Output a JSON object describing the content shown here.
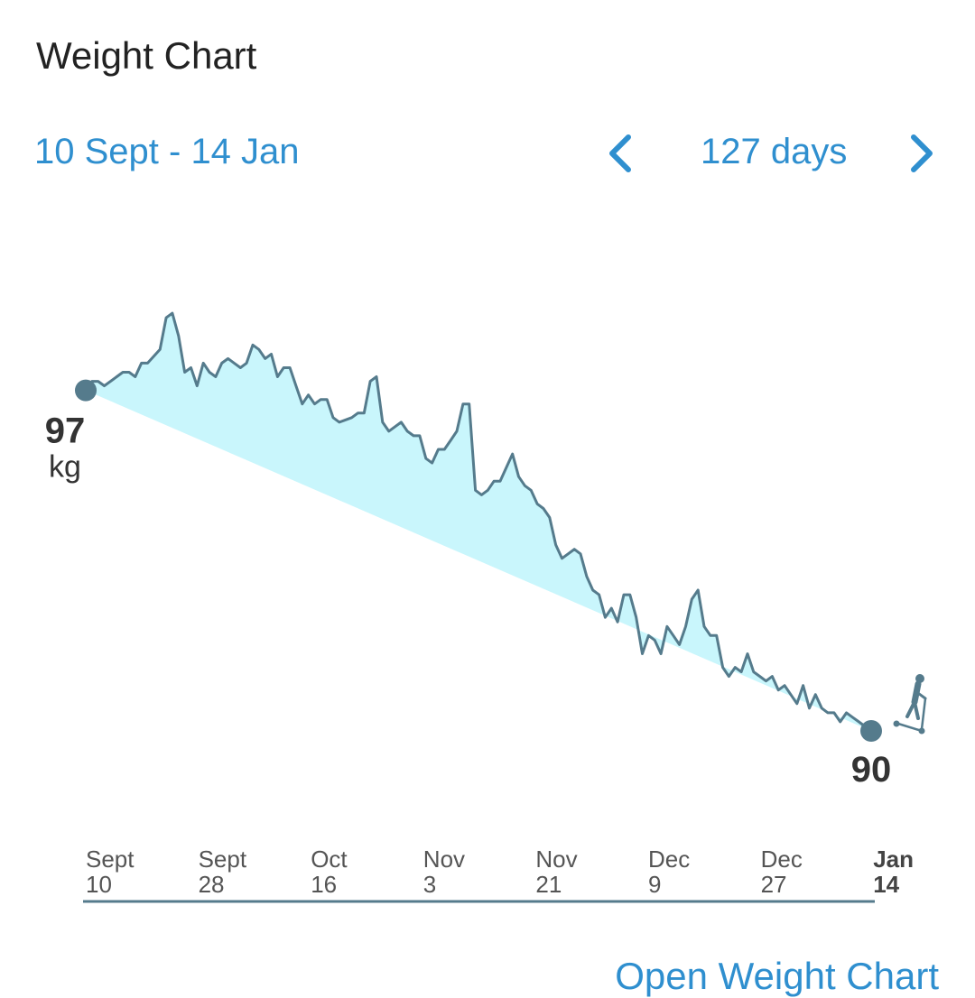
{
  "header": {
    "title": "Weight Chart",
    "date_range": "10 Sept - 14 Jan",
    "period": "127 days"
  },
  "nav": {
    "prev_icon": "chevron-left-icon",
    "next_icon": "chevron-right-icon"
  },
  "footer": {
    "link_label": "Open Weight Chart"
  },
  "colors": {
    "accent": "#2f8fcf",
    "line": "#557b8c",
    "fill": "#c9f6fc",
    "text": "#333333"
  },
  "chart_data": {
    "type": "area",
    "x_start": "Sept 10",
    "x_end": "Jan 14",
    "ylim": [
      89.5,
      99.0
    ],
    "start_value": {
      "value": "97",
      "unit": "kg"
    },
    "end_value": {
      "value": "90"
    },
    "end_icon": "elliptical-trainer-icon",
    "x_ticks": [
      {
        "month": "Sept",
        "day": "10"
      },
      {
        "month": "Sept",
        "day": "28"
      },
      {
        "month": "Oct",
        "day": "16"
      },
      {
        "month": "Nov",
        "day": "3"
      },
      {
        "month": "Nov",
        "day": "21"
      },
      {
        "month": "Dec",
        "day": "9"
      },
      {
        "month": "Dec",
        "day": "27"
      },
      {
        "month": "Jan",
        "day": "14",
        "current": true
      }
    ],
    "series": [
      {
        "values": [
          [
            0,
            97.0
          ],
          [
            1,
            97.2
          ],
          [
            2,
            97.2
          ],
          [
            3,
            97.1
          ],
          [
            5,
            97.3
          ],
          [
            6,
            97.4
          ],
          [
            7,
            97.4
          ],
          [
            8,
            97.3
          ],
          [
            9,
            97.6
          ],
          [
            10,
            97.6
          ],
          [
            12,
            97.9
          ],
          [
            13,
            98.6
          ],
          [
            14,
            98.7
          ],
          [
            15,
            98.2
          ],
          [
            16,
            97.4
          ],
          [
            17,
            97.5
          ],
          [
            18,
            97.1
          ],
          [
            19,
            97.6
          ],
          [
            20,
            97.4
          ],
          [
            21,
            97.3
          ],
          [
            22,
            97.6
          ],
          [
            23,
            97.7
          ],
          [
            24,
            97.6
          ],
          [
            25,
            97.5
          ],
          [
            26,
            97.6
          ],
          [
            27,
            98.0
          ],
          [
            28,
            97.9
          ],
          [
            29,
            97.7
          ],
          [
            30,
            97.8
          ],
          [
            31,
            97.3
          ],
          [
            32,
            97.5
          ],
          [
            33,
            97.5
          ],
          [
            34,
            97.1
          ],
          [
            35,
            96.7
          ],
          [
            36,
            96.9
          ],
          [
            37,
            96.7
          ],
          [
            38,
            96.8
          ],
          [
            39,
            96.8
          ],
          [
            40,
            96.4
          ],
          [
            41,
            96.3
          ],
          [
            43,
            96.4
          ],
          [
            44,
            96.5
          ],
          [
            45,
            96.5
          ],
          [
            46,
            97.2
          ],
          [
            47,
            97.3
          ],
          [
            48,
            96.3
          ],
          [
            49,
            96.1
          ],
          [
            50,
            96.2
          ],
          [
            51,
            96.3
          ],
          [
            52,
            96.1
          ],
          [
            53,
            96.0
          ],
          [
            54,
            96.0
          ],
          [
            55,
            95.5
          ],
          [
            56,
            95.4
          ],
          [
            57,
            95.7
          ],
          [
            58,
            95.7
          ],
          [
            59,
            95.9
          ],
          [
            60,
            96.1
          ],
          [
            61,
            96.7
          ],
          [
            62,
            96.7
          ],
          [
            63,
            94.8
          ],
          [
            64,
            94.7
          ],
          [
            65,
            94.8
          ],
          [
            66,
            95.0
          ],
          [
            67,
            95.0
          ],
          [
            68,
            95.3
          ],
          [
            69,
            95.6
          ],
          [
            70,
            95.1
          ],
          [
            71,
            94.9
          ],
          [
            72,
            94.8
          ],
          [
            73,
            94.5
          ],
          [
            74,
            94.4
          ],
          [
            75,
            94.2
          ],
          [
            76,
            93.6
          ],
          [
            77,
            93.3
          ],
          [
            78,
            93.4
          ],
          [
            79,
            93.5
          ],
          [
            80,
            93.4
          ],
          [
            81,
            92.9
          ],
          [
            82,
            92.6
          ],
          [
            83,
            92.5
          ],
          [
            84,
            92.0
          ],
          [
            85,
            92.2
          ],
          [
            86,
            91.9
          ],
          [
            87,
            92.5
          ],
          [
            88,
            92.5
          ],
          [
            89,
            92.0
          ],
          [
            90,
            91.2
          ],
          [
            91,
            91.6
          ],
          [
            92,
            91.5
          ],
          [
            93,
            91.2
          ],
          [
            94,
            91.8
          ],
          [
            95,
            91.6
          ],
          [
            96,
            91.4
          ],
          [
            97,
            91.8
          ],
          [
            98,
            92.4
          ],
          [
            99,
            92.6
          ],
          [
            100,
            91.8
          ],
          [
            101,
            91.6
          ],
          [
            102,
            91.6
          ],
          [
            103,
            90.9
          ],
          [
            104,
            90.7
          ],
          [
            105,
            90.9
          ],
          [
            106,
            90.8
          ],
          [
            107,
            91.2
          ],
          [
            108,
            90.8
          ],
          [
            109,
            90.7
          ],
          [
            110,
            90.6
          ],
          [
            111,
            90.7
          ],
          [
            112,
            90.4
          ],
          [
            113,
            90.5
          ],
          [
            114,
            90.3
          ],
          [
            115,
            90.1
          ],
          [
            116,
            90.5
          ],
          [
            117,
            90.0
          ],
          [
            118,
            90.3
          ],
          [
            119,
            90.0
          ],
          [
            120,
            89.9
          ],
          [
            121,
            89.9
          ],
          [
            122,
            89.7
          ],
          [
            123,
            89.9
          ],
          [
            124,
            89.8
          ],
          [
            125,
            89.7
          ],
          [
            126,
            89.6
          ],
          [
            127,
            89.5
          ]
        ]
      }
    ]
  }
}
